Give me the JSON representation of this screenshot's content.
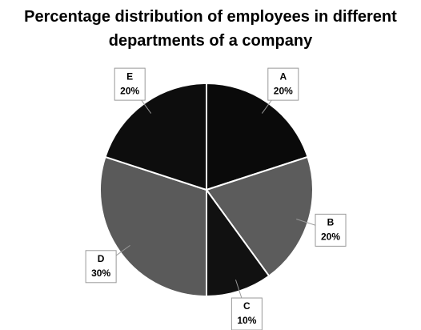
{
  "chart_data": {
    "type": "pie",
    "title": "Percentage distribution of employees in different departments of a company",
    "categories": [
      "A",
      "B",
      "C",
      "D",
      "E"
    ],
    "values": [
      20,
      20,
      10,
      30,
      20
    ],
    "value_labels": [
      "20%",
      "20%",
      "10%",
      "30%",
      "20%"
    ],
    "colors": [
      "#0a0a0a",
      "#5c5c5c",
      "#111111",
      "#5a5a5a",
      "#0d0d0d"
    ]
  }
}
